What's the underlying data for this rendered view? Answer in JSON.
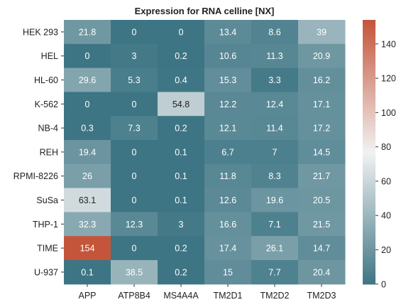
{
  "chart_data": {
    "type": "heatmap",
    "title": "Expression for RNA celline [NX]",
    "xlabel": "",
    "ylabel": "",
    "rows": [
      "HEK 293",
      "HEL",
      "HL-60",
      "K-562",
      "NB-4",
      "REH",
      "RPMI-8226",
      "SuSa",
      "THP-1",
      "TIME",
      "U-937"
    ],
    "columns": [
      "APP",
      "ATP8B4",
      "MS4A4A",
      "TM2D1",
      "TM2D2",
      "TM2D3"
    ],
    "values": [
      [
        21.8,
        0,
        0,
        13.4,
        8.6,
        39
      ],
      [
        0,
        3,
        0.2,
        10.6,
        11.3,
        20.9
      ],
      [
        29.6,
        5.3,
        0.4,
        15.3,
        3.3,
        16.2
      ],
      [
        0,
        0,
        54.8,
        12.2,
        12.4,
        17.1
      ],
      [
        0.3,
        7.3,
        0.2,
        12.1,
        11.4,
        17.2
      ],
      [
        19.4,
        0,
        0.1,
        6.7,
        7,
        14.5
      ],
      [
        26,
        0,
        0.1,
        11.8,
        8.3,
        21.7
      ],
      [
        63.1,
        0,
        0.1,
        12.6,
        19.6,
        20.5
      ],
      [
        32.3,
        12.3,
        3,
        16.6,
        7.1,
        21.5
      ],
      [
        154,
        0,
        0.2,
        17.4,
        26.1,
        14.7
      ],
      [
        0.1,
        38.5,
        0.2,
        15,
        7.7,
        20.4
      ]
    ],
    "colorbar": {
      "min": 0,
      "max": 154,
      "ticks": [
        0,
        20,
        40,
        60,
        80,
        100,
        120,
        140
      ],
      "colors": {
        "low": "#3d7584",
        "mid": "#f2f2f2",
        "high": "#c4553a"
      }
    },
    "grid": false
  }
}
